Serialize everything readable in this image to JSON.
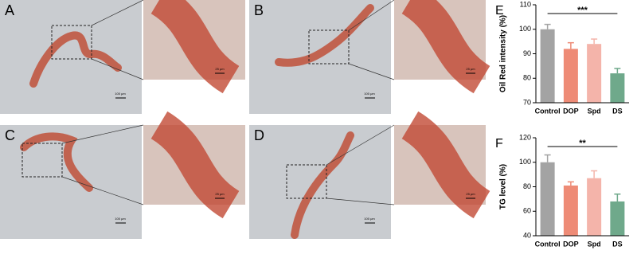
{
  "panels": [
    {
      "label": "A",
      "scale_main": "100 μm",
      "scale_zoom": "25 μm"
    },
    {
      "label": "B",
      "scale_main": "100 μm",
      "scale_zoom": "25 μm"
    },
    {
      "label": "C",
      "scale_main": "100 μm",
      "scale_zoom": "25 μm"
    },
    {
      "label": "D",
      "scale_main": "100 μm",
      "scale_zoom": "25 μm"
    }
  ],
  "chart_data": [
    {
      "type": "bar",
      "label": "E",
      "ylabel": "Oil Red intensity (%)",
      "categories": [
        "Control",
        "DOP",
        "Spd",
        "DS"
      ],
      "values": [
        100,
        92,
        94,
        82
      ],
      "errors": [
        2,
        2.5,
        2,
        2
      ],
      "colors": [
        "#a3a3a3",
        "#ee8b76",
        "#f4b4aa",
        "#6fa98b"
      ],
      "ylim": [
        70,
        110
      ],
      "yticks": [
        70,
        80,
        90,
        100,
        110
      ],
      "significance": "***"
    },
    {
      "type": "bar",
      "label": "F",
      "ylabel": "TG level (%)",
      "categories": [
        "Control",
        "DOP",
        "Spd",
        "DS"
      ],
      "values": [
        100,
        81,
        87,
        68
      ],
      "errors": [
        6,
        3,
        6,
        6
      ],
      "colors": [
        "#a3a3a3",
        "#ee8b76",
        "#f4b4aa",
        "#6fa98b"
      ],
      "ylim": [
        40,
        120
      ],
      "yticks": [
        40,
        60,
        80,
        100,
        120
      ],
      "significance": "**"
    }
  ]
}
